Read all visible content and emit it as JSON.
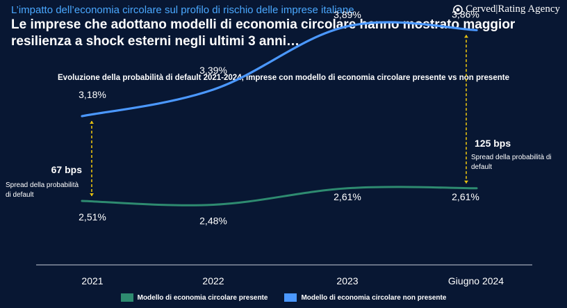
{
  "header": {
    "kicker": "L’impatto dell’economia circolare sul profilo di rischio delle imprese italiane",
    "brand": "Cerved|Rating Agency",
    "headline": "Le imprese che adottano modelli di economia circolare hanno mostrato maggior resilienza a shock esterni negli ultimi 3 anni…"
  },
  "colors": {
    "background": "#081733",
    "accent": "#4aa8ff",
    "series_present": "#2e8b70",
    "series_not_present": "#4b98ff",
    "spread_marker": "#e8c20f"
  },
  "chart_data": {
    "type": "line",
    "title": "Evoluzione della probabilità di default 2021-2024, imprese con modello di economia circolare presente vs non presente",
    "categories": [
      "2021",
      "2022",
      "2023",
      "Giugno 2024"
    ],
    "series": [
      {
        "name": "Modello di economia circolare presente",
        "values": [
          2.51,
          2.48,
          2.61,
          2.61
        ],
        "labels": [
          "2,51%",
          "2,48%",
          "2,61%",
          "2,61%"
        ]
      },
      {
        "name": "Modello di economia circolare non presente",
        "values": [
          3.18,
          3.39,
          3.89,
          3.86
        ],
        "labels": [
          "3,18%",
          "3,39%",
          "3,89%",
          "3,86%"
        ]
      }
    ],
    "annotations": [
      {
        "at": "2021",
        "value": "67 bps",
        "text": "Spread della probabilità di default"
      },
      {
        "at": "Giugno 2024",
        "value": "125 bps",
        "text": "Spread della probabilità di default"
      }
    ],
    "xlabel": "",
    "ylabel": "",
    "grid": false,
    "legend": "bottom"
  }
}
